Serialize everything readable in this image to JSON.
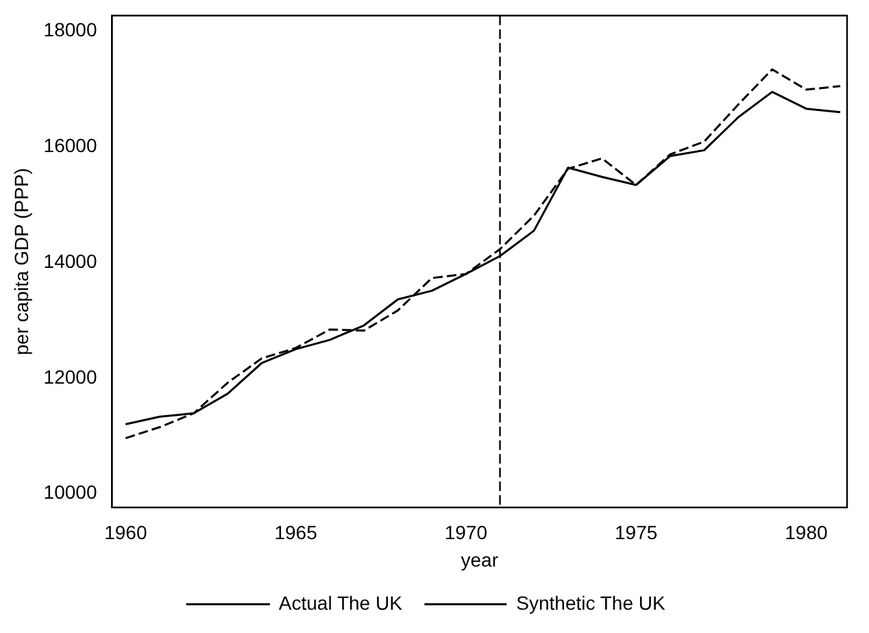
{
  "chart_data": {
    "type": "line",
    "xlabel": "year",
    "ylabel": "per capita GDP (PPP)",
    "x": [
      1960,
      1961,
      1962,
      1963,
      1964,
      1965,
      1966,
      1967,
      1968,
      1969,
      1970,
      1971,
      1972,
      1973,
      1974,
      1975,
      1976,
      1977,
      1978,
      1979,
      1980,
      1981
    ],
    "series": [
      {
        "name": "Actual The UK",
        "color": "#000000",
        "line_style": "solid",
        "values": [
          11200,
          11330,
          11390,
          11730,
          12260,
          12500,
          12660,
          12910,
          13360,
          13510,
          13800,
          14110,
          14550,
          15640,
          15480,
          15340,
          15840,
          15940,
          16510,
          16950,
          16660,
          16600
        ]
      },
      {
        "name": "Synthetic The UK",
        "color": "#000000",
        "line_style": "dashed",
        "values": [
          10960,
          11150,
          11390,
          11920,
          12340,
          12520,
          12840,
          12820,
          13170,
          13730,
          13800,
          14230,
          14810,
          15620,
          15800,
          15340,
          15870,
          16090,
          16730,
          17340,
          16990,
          17050
        ]
      }
    ],
    "xlim": [
      1959.6,
      1981.2
    ],
    "xticks": [
      1960,
      1965,
      1970,
      1975,
      1980
    ],
    "ylim": [
      9760,
      18270
    ],
    "yticks": [
      10000,
      12000,
      14000,
      16000,
      18000
    ],
    "ref_lines": [
      {
        "axis": "x",
        "value": 1971,
        "color": "#000000",
        "line_style": "dashed"
      }
    ],
    "grid": false,
    "legend": "bottom",
    "marker": "none"
  }
}
